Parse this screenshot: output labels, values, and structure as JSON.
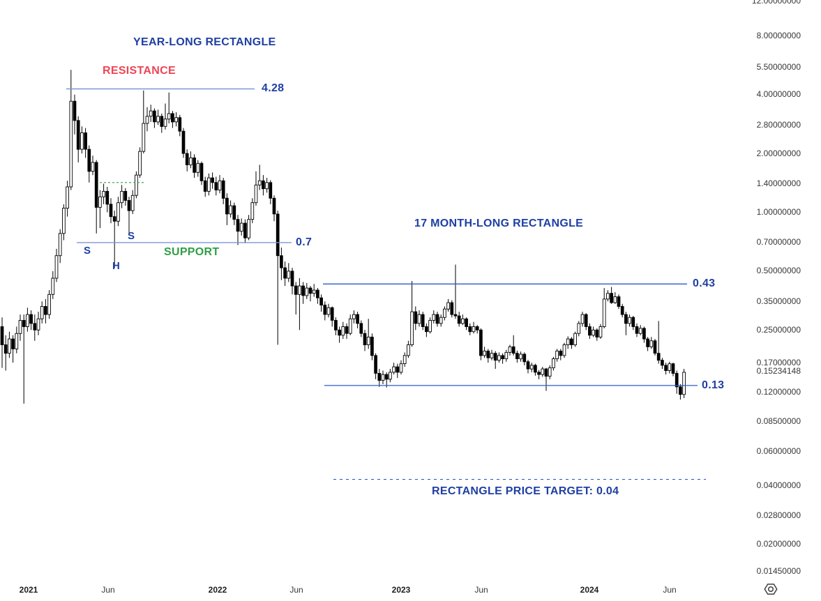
{
  "chart": {
    "annotations": {
      "year_rectangle": "YEAR-LONG RECTANGLE",
      "resistance": "RESISTANCE",
      "support": "SUPPORT",
      "shs_left_shoulder": "S",
      "shs_head": "H",
      "shs_right_shoulder": "S",
      "month17_rectangle": "17 MONTH-LONG RECTANGLE",
      "resistance_price": "4.28",
      "support_price": "0.7",
      "rect_top_price": "0.43",
      "rect_bottom_price": "0.13",
      "price_target": "RECTANGLE PRICE TARGET: 0.04"
    },
    "colors": {
      "annotation-blue": "#1e3fa4",
      "line-blue": "#2d5bc8",
      "line-blue-light": "#7b96d8",
      "red": "#ef4455",
      "green": "#2f9e44",
      "candle": "#000000",
      "axis-text": "#363636"
    },
    "icons": {
      "axis_settings": "hexagon-with-circle"
    }
  },
  "chart_data": {
    "type": "candlestick",
    "scale": "log",
    "timeframe": "weekly",
    "current_price": "0.15234148",
    "y_ticks": [
      "12.00000000",
      "8.00000000",
      "5.50000000",
      "4.00000000",
      "2.80000000",
      "2.00000000",
      "1.40000000",
      "1.00000000",
      "0.70000000",
      "0.50000000",
      "0.35000000",
      "0.25000000",
      "0.17000000",
      "0.12000000",
      "0.08500000",
      "0.06000000",
      "0.04000000",
      "0.02800000",
      "0.02000000",
      "0.01450000"
    ],
    "x_ticks": [
      {
        "label": "2021",
        "x": 41,
        "bold": true
      },
      {
        "label": "Jun",
        "x": 155,
        "bold": false
      },
      {
        "label": "2022",
        "x": 312,
        "bold": true
      },
      {
        "label": "Jun",
        "x": 425,
        "bold": false
      },
      {
        "label": "2023",
        "x": 575,
        "bold": true
      },
      {
        "label": "Jun",
        "x": 690,
        "bold": false
      },
      {
        "label": "2024",
        "x": 845,
        "bold": true
      },
      {
        "label": "Jun",
        "x": 960,
        "bold": false
      }
    ],
    "levels": [
      {
        "name": "resistance-line",
        "price": 4.28,
        "x1": 95,
        "x2": 365,
        "color": "light",
        "width": 1.4,
        "dash": ""
      },
      {
        "name": "support-line",
        "price": 0.7,
        "x1": 110,
        "x2": 418,
        "color": "light",
        "width": 1.4,
        "dash": ""
      },
      {
        "name": "shs-neckline",
        "price": 1.42,
        "x1": 143,
        "x2": 207,
        "color": "green",
        "width": 1.2,
        "dash": "3 3"
      },
      {
        "name": "rectangle-top-line",
        "price": 0.43,
        "x1": 463,
        "x2": 985,
        "color": "strong",
        "width": 1.3,
        "dash": ""
      },
      {
        "name": "rectangle-bottom-line",
        "price": 0.13,
        "x1": 465,
        "x2": 1000,
        "color": "strong",
        "width": 1.3,
        "dash": ""
      },
      {
        "name": "price-target-line",
        "price": 0.043,
        "x1": 478,
        "x2": 1012,
        "color": "strong",
        "width": 1.1,
        "dash": "4 5"
      }
    ],
    "candles": [
      [
        0.26,
        0.29,
        0.16,
        0.21
      ],
      [
        0.21,
        0.235,
        0.155,
        0.19
      ],
      [
        0.19,
        0.245,
        0.18,
        0.225
      ],
      [
        0.225,
        0.235,
        0.17,
        0.2
      ],
      [
        0.2,
        0.26,
        0.19,
        0.24
      ],
      [
        0.24,
        0.3,
        0.22,
        0.28
      ],
      [
        0.28,
        0.3,
        0.105,
        0.26
      ],
      [
        0.26,
        0.325,
        0.245,
        0.3
      ],
      [
        0.3,
        0.315,
        0.25,
        0.27
      ],
      [
        0.27,
        0.3,
        0.22,
        0.25
      ],
      [
        0.25,
        0.31,
        0.235,
        0.285
      ],
      [
        0.285,
        0.35,
        0.27,
        0.33
      ],
      [
        0.33,
        0.36,
        0.27,
        0.3
      ],
      [
        0.3,
        0.4,
        0.285,
        0.38
      ],
      [
        0.38,
        0.5,
        0.36,
        0.46
      ],
      [
        0.46,
        0.65,
        0.44,
        0.6
      ],
      [
        0.6,
        0.82,
        0.55,
        0.78
      ],
      [
        0.78,
        1.1,
        0.72,
        1.05
      ],
      [
        1.05,
        1.45,
        0.95,
        1.35
      ],
      [
        1.35,
        5.35,
        1.3,
        3.7
      ],
      [
        3.7,
        4.0,
        2.5,
        2.95
      ],
      [
        2.95,
        3.1,
        1.8,
        2.1
      ],
      [
        2.1,
        2.75,
        2.0,
        2.55
      ],
      [
        2.55,
        2.7,
        1.9,
        2.1
      ],
      [
        2.1,
        2.2,
        1.42,
        1.62
      ],
      [
        1.62,
        1.95,
        1.55,
        1.8
      ],
      [
        1.8,
        1.85,
        0.78,
        1.06
      ],
      [
        1.06,
        1.3,
        0.83,
        1.2
      ],
      [
        1.2,
        1.4,
        1.1,
        1.28
      ],
      [
        1.28,
        1.35,
        1.0,
        1.1
      ],
      [
        1.1,
        1.18,
        0.88,
        0.95
      ],
      [
        0.95,
        1.02,
        0.52,
        0.9
      ],
      [
        0.9,
        1.2,
        0.85,
        1.12
      ],
      [
        1.12,
        1.38,
        1.05,
        1.28
      ],
      [
        1.28,
        1.33,
        1.08,
        1.15
      ],
      [
        1.15,
        1.2,
        0.76,
        1.02
      ],
      [
        1.02,
        1.3,
        0.98,
        1.22
      ],
      [
        1.22,
        1.62,
        1.18,
        1.55
      ],
      [
        1.55,
        2.15,
        1.5,
        2.05
      ],
      [
        2.05,
        4.2,
        2.0,
        2.85
      ],
      [
        2.85,
        3.45,
        2.6,
        3.1
      ],
      [
        3.1,
        3.55,
        2.9,
        3.3
      ],
      [
        3.3,
        3.4,
        2.7,
        2.9
      ],
      [
        2.9,
        3.35,
        2.8,
        3.1
      ],
      [
        3.1,
        3.2,
        2.55,
        2.75
      ],
      [
        2.75,
        3.6,
        2.65,
        3.0
      ],
      [
        3.0,
        4.1,
        2.85,
        3.2
      ],
      [
        3.2,
        3.3,
        2.7,
        2.9
      ],
      [
        2.9,
        3.25,
        2.75,
        3.05
      ],
      [
        3.05,
        3.15,
        2.45,
        2.6
      ],
      [
        2.6,
        2.7,
        1.9,
        2.0
      ],
      [
        2.0,
        2.1,
        1.62,
        1.75
      ],
      [
        1.75,
        2.05,
        1.68,
        1.9
      ],
      [
        1.9,
        1.98,
        1.5,
        1.6
      ],
      [
        1.6,
        1.85,
        1.52,
        1.78
      ],
      [
        1.78,
        1.82,
        1.38,
        1.45
      ],
      [
        1.45,
        1.52,
        1.2,
        1.28
      ],
      [
        1.28,
        1.58,
        1.22,
        1.5
      ],
      [
        1.5,
        1.6,
        1.32,
        1.42
      ],
      [
        1.42,
        1.52,
        1.22,
        1.3
      ],
      [
        1.3,
        1.55,
        1.25,
        1.45
      ],
      [
        1.45,
        1.5,
        1.1,
        1.18
      ],
      [
        1.18,
        1.25,
        0.86,
        0.98
      ],
      [
        0.98,
        1.15,
        0.94,
        1.08
      ],
      [
        1.08,
        1.12,
        0.86,
        0.92
      ],
      [
        0.92,
        0.97,
        0.68,
        0.8
      ],
      [
        0.8,
        0.93,
        0.76,
        0.88
      ],
      [
        0.88,
        0.92,
        0.695,
        0.74
      ],
      [
        0.74,
        0.97,
        0.72,
        0.92
      ],
      [
        0.92,
        1.18,
        0.88,
        1.12
      ],
      [
        1.12,
        1.62,
        1.08,
        1.38
      ],
      [
        1.38,
        1.75,
        1.3,
        1.45
      ],
      [
        1.45,
        1.55,
        1.22,
        1.32
      ],
      [
        1.32,
        1.5,
        1.26,
        1.42
      ],
      [
        1.42,
        1.46,
        1.1,
        1.18
      ],
      [
        1.18,
        1.22,
        0.9,
        0.98
      ],
      [
        0.98,
        1.02,
        0.21,
        0.6
      ],
      [
        0.6,
        0.66,
        0.45,
        0.52
      ],
      [
        0.52,
        0.56,
        0.42,
        0.46
      ],
      [
        0.46,
        0.55,
        0.44,
        0.5
      ],
      [
        0.5,
        0.52,
        0.38,
        0.42
      ],
      [
        0.42,
        0.44,
        0.3,
        0.38
      ],
      [
        0.38,
        0.46,
        0.25,
        0.42
      ],
      [
        0.42,
        0.44,
        0.34,
        0.375
      ],
      [
        0.375,
        0.435,
        0.36,
        0.41
      ],
      [
        0.41,
        0.42,
        0.35,
        0.385
      ],
      [
        0.385,
        0.43,
        0.37,
        0.4
      ],
      [
        0.4,
        0.41,
        0.34,
        0.365
      ],
      [
        0.365,
        0.38,
        0.31,
        0.335
      ],
      [
        0.335,
        0.35,
        0.28,
        0.3
      ],
      [
        0.3,
        0.34,
        0.29,
        0.325
      ],
      [
        0.325,
        0.33,
        0.26,
        0.28
      ],
      [
        0.28,
        0.29,
        0.235,
        0.25
      ],
      [
        0.25,
        0.26,
        0.215,
        0.235
      ],
      [
        0.235,
        0.275,
        0.225,
        0.26
      ],
      [
        0.26,
        0.27,
        0.225,
        0.24
      ],
      [
        0.24,
        0.3,
        0.235,
        0.285
      ],
      [
        0.285,
        0.315,
        0.27,
        0.3
      ],
      [
        0.3,
        0.31,
        0.255,
        0.27
      ],
      [
        0.27,
        0.28,
        0.23,
        0.24
      ],
      [
        0.24,
        0.25,
        0.195,
        0.21
      ],
      [
        0.21,
        0.285,
        0.2,
        0.23
      ],
      [
        0.23,
        0.24,
        0.175,
        0.185
      ],
      [
        0.185,
        0.19,
        0.14,
        0.15
      ],
      [
        0.15,
        0.158,
        0.128,
        0.138
      ],
      [
        0.138,
        0.155,
        0.132,
        0.148
      ],
      [
        0.148,
        0.152,
        0.127,
        0.14
      ],
      [
        0.14,
        0.158,
        0.135,
        0.152
      ],
      [
        0.152,
        0.17,
        0.148,
        0.162
      ],
      [
        0.162,
        0.168,
        0.142,
        0.152
      ],
      [
        0.152,
        0.175,
        0.148,
        0.168
      ],
      [
        0.168,
        0.192,
        0.162,
        0.185
      ],
      [
        0.185,
        0.22,
        0.18,
        0.21
      ],
      [
        0.21,
        0.445,
        0.205,
        0.31
      ],
      [
        0.31,
        0.33,
        0.25,
        0.27
      ],
      [
        0.27,
        0.315,
        0.26,
        0.3
      ],
      [
        0.3,
        0.31,
        0.25,
        0.26
      ],
      [
        0.26,
        0.27,
        0.23,
        0.245
      ],
      [
        0.245,
        0.29,
        0.24,
        0.28
      ],
      [
        0.28,
        0.315,
        0.27,
        0.3
      ],
      [
        0.3,
        0.31,
        0.26,
        0.27
      ],
      [
        0.27,
        0.3,
        0.26,
        0.29
      ],
      [
        0.29,
        0.33,
        0.28,
        0.32
      ],
      [
        0.32,
        0.36,
        0.31,
        0.345
      ],
      [
        0.345,
        0.355,
        0.29,
        0.3
      ],
      [
        0.3,
        0.54,
        0.285,
        0.295
      ],
      [
        0.295,
        0.31,
        0.26,
        0.27
      ],
      [
        0.27,
        0.3,
        0.265,
        0.285
      ],
      [
        0.285,
        0.29,
        0.25,
        0.26
      ],
      [
        0.26,
        0.27,
        0.235,
        0.245
      ],
      [
        0.245,
        0.275,
        0.24,
        0.26
      ],
      [
        0.26,
        0.265,
        0.24,
        0.25
      ],
      [
        0.25,
        0.255,
        0.175,
        0.185
      ],
      [
        0.185,
        0.205,
        0.18,
        0.195
      ],
      [
        0.195,
        0.2,
        0.17,
        0.18
      ],
      [
        0.18,
        0.198,
        0.175,
        0.19
      ],
      [
        0.19,
        0.195,
        0.158,
        0.175
      ],
      [
        0.175,
        0.192,
        0.17,
        0.185
      ],
      [
        0.185,
        0.19,
        0.168,
        0.178
      ],
      [
        0.178,
        0.198,
        0.172,
        0.192
      ],
      [
        0.192,
        0.21,
        0.185,
        0.205
      ],
      [
        0.205,
        0.235,
        0.185,
        0.19
      ],
      [
        0.19,
        0.196,
        0.17,
        0.178
      ],
      [
        0.178,
        0.194,
        0.172,
        0.188
      ],
      [
        0.188,
        0.192,
        0.165,
        0.172
      ],
      [
        0.172,
        0.176,
        0.15,
        0.158
      ],
      [
        0.158,
        0.17,
        0.152,
        0.165
      ],
      [
        0.165,
        0.168,
        0.146,
        0.152
      ],
      [
        0.152,
        0.156,
        0.14,
        0.148
      ],
      [
        0.148,
        0.162,
        0.144,
        0.158
      ],
      [
        0.158,
        0.16,
        0.122,
        0.145
      ],
      [
        0.145,
        0.165,
        0.14,
        0.16
      ],
      [
        0.16,
        0.182,
        0.155,
        0.178
      ],
      [
        0.178,
        0.2,
        0.172,
        0.195
      ],
      [
        0.195,
        0.2,
        0.175,
        0.185
      ],
      [
        0.185,
        0.215,
        0.18,
        0.21
      ],
      [
        0.21,
        0.232,
        0.2,
        0.225
      ],
      [
        0.225,
        0.23,
        0.2,
        0.21
      ],
      [
        0.21,
        0.245,
        0.205,
        0.24
      ],
      [
        0.24,
        0.278,
        0.232,
        0.27
      ],
      [
        0.27,
        0.31,
        0.26,
        0.3
      ],
      [
        0.3,
        0.305,
        0.25,
        0.26
      ],
      [
        0.26,
        0.27,
        0.225,
        0.235
      ],
      [
        0.235,
        0.26,
        0.23,
        0.25
      ],
      [
        0.25,
        0.255,
        0.22,
        0.23
      ],
      [
        0.23,
        0.268,
        0.225,
        0.26
      ],
      [
        0.26,
        0.41,
        0.255,
        0.36
      ],
      [
        0.36,
        0.4,
        0.35,
        0.385
      ],
      [
        0.385,
        0.415,
        0.34,
        0.345
      ],
      [
        0.345,
        0.39,
        0.34,
        0.37
      ],
      [
        0.37,
        0.38,
        0.32,
        0.33
      ],
      [
        0.33,
        0.34,
        0.29,
        0.3
      ],
      [
        0.3,
        0.31,
        0.235,
        0.27
      ],
      [
        0.27,
        0.3,
        0.26,
        0.29
      ],
      [
        0.29,
        0.295,
        0.25,
        0.26
      ],
      [
        0.26,
        0.27,
        0.23,
        0.24
      ],
      [
        0.24,
        0.265,
        0.235,
        0.255
      ],
      [
        0.255,
        0.26,
        0.215,
        0.225
      ],
      [
        0.225,
        0.23,
        0.195,
        0.205
      ],
      [
        0.205,
        0.23,
        0.2,
        0.22
      ],
      [
        0.22,
        0.225,
        0.185,
        0.19
      ],
      [
        0.19,
        0.278,
        0.168,
        0.175
      ],
      [
        0.175,
        0.18,
        0.158,
        0.165
      ],
      [
        0.165,
        0.17,
        0.148,
        0.155
      ],
      [
        0.155,
        0.172,
        0.15,
        0.168
      ],
      [
        0.168,
        0.17,
        0.145,
        0.15
      ],
      [
        0.15,
        0.155,
        0.118,
        0.128
      ],
      [
        0.128,
        0.132,
        0.11,
        0.117
      ],
      [
        0.117,
        0.158,
        0.112,
        0.152
      ]
    ]
  }
}
